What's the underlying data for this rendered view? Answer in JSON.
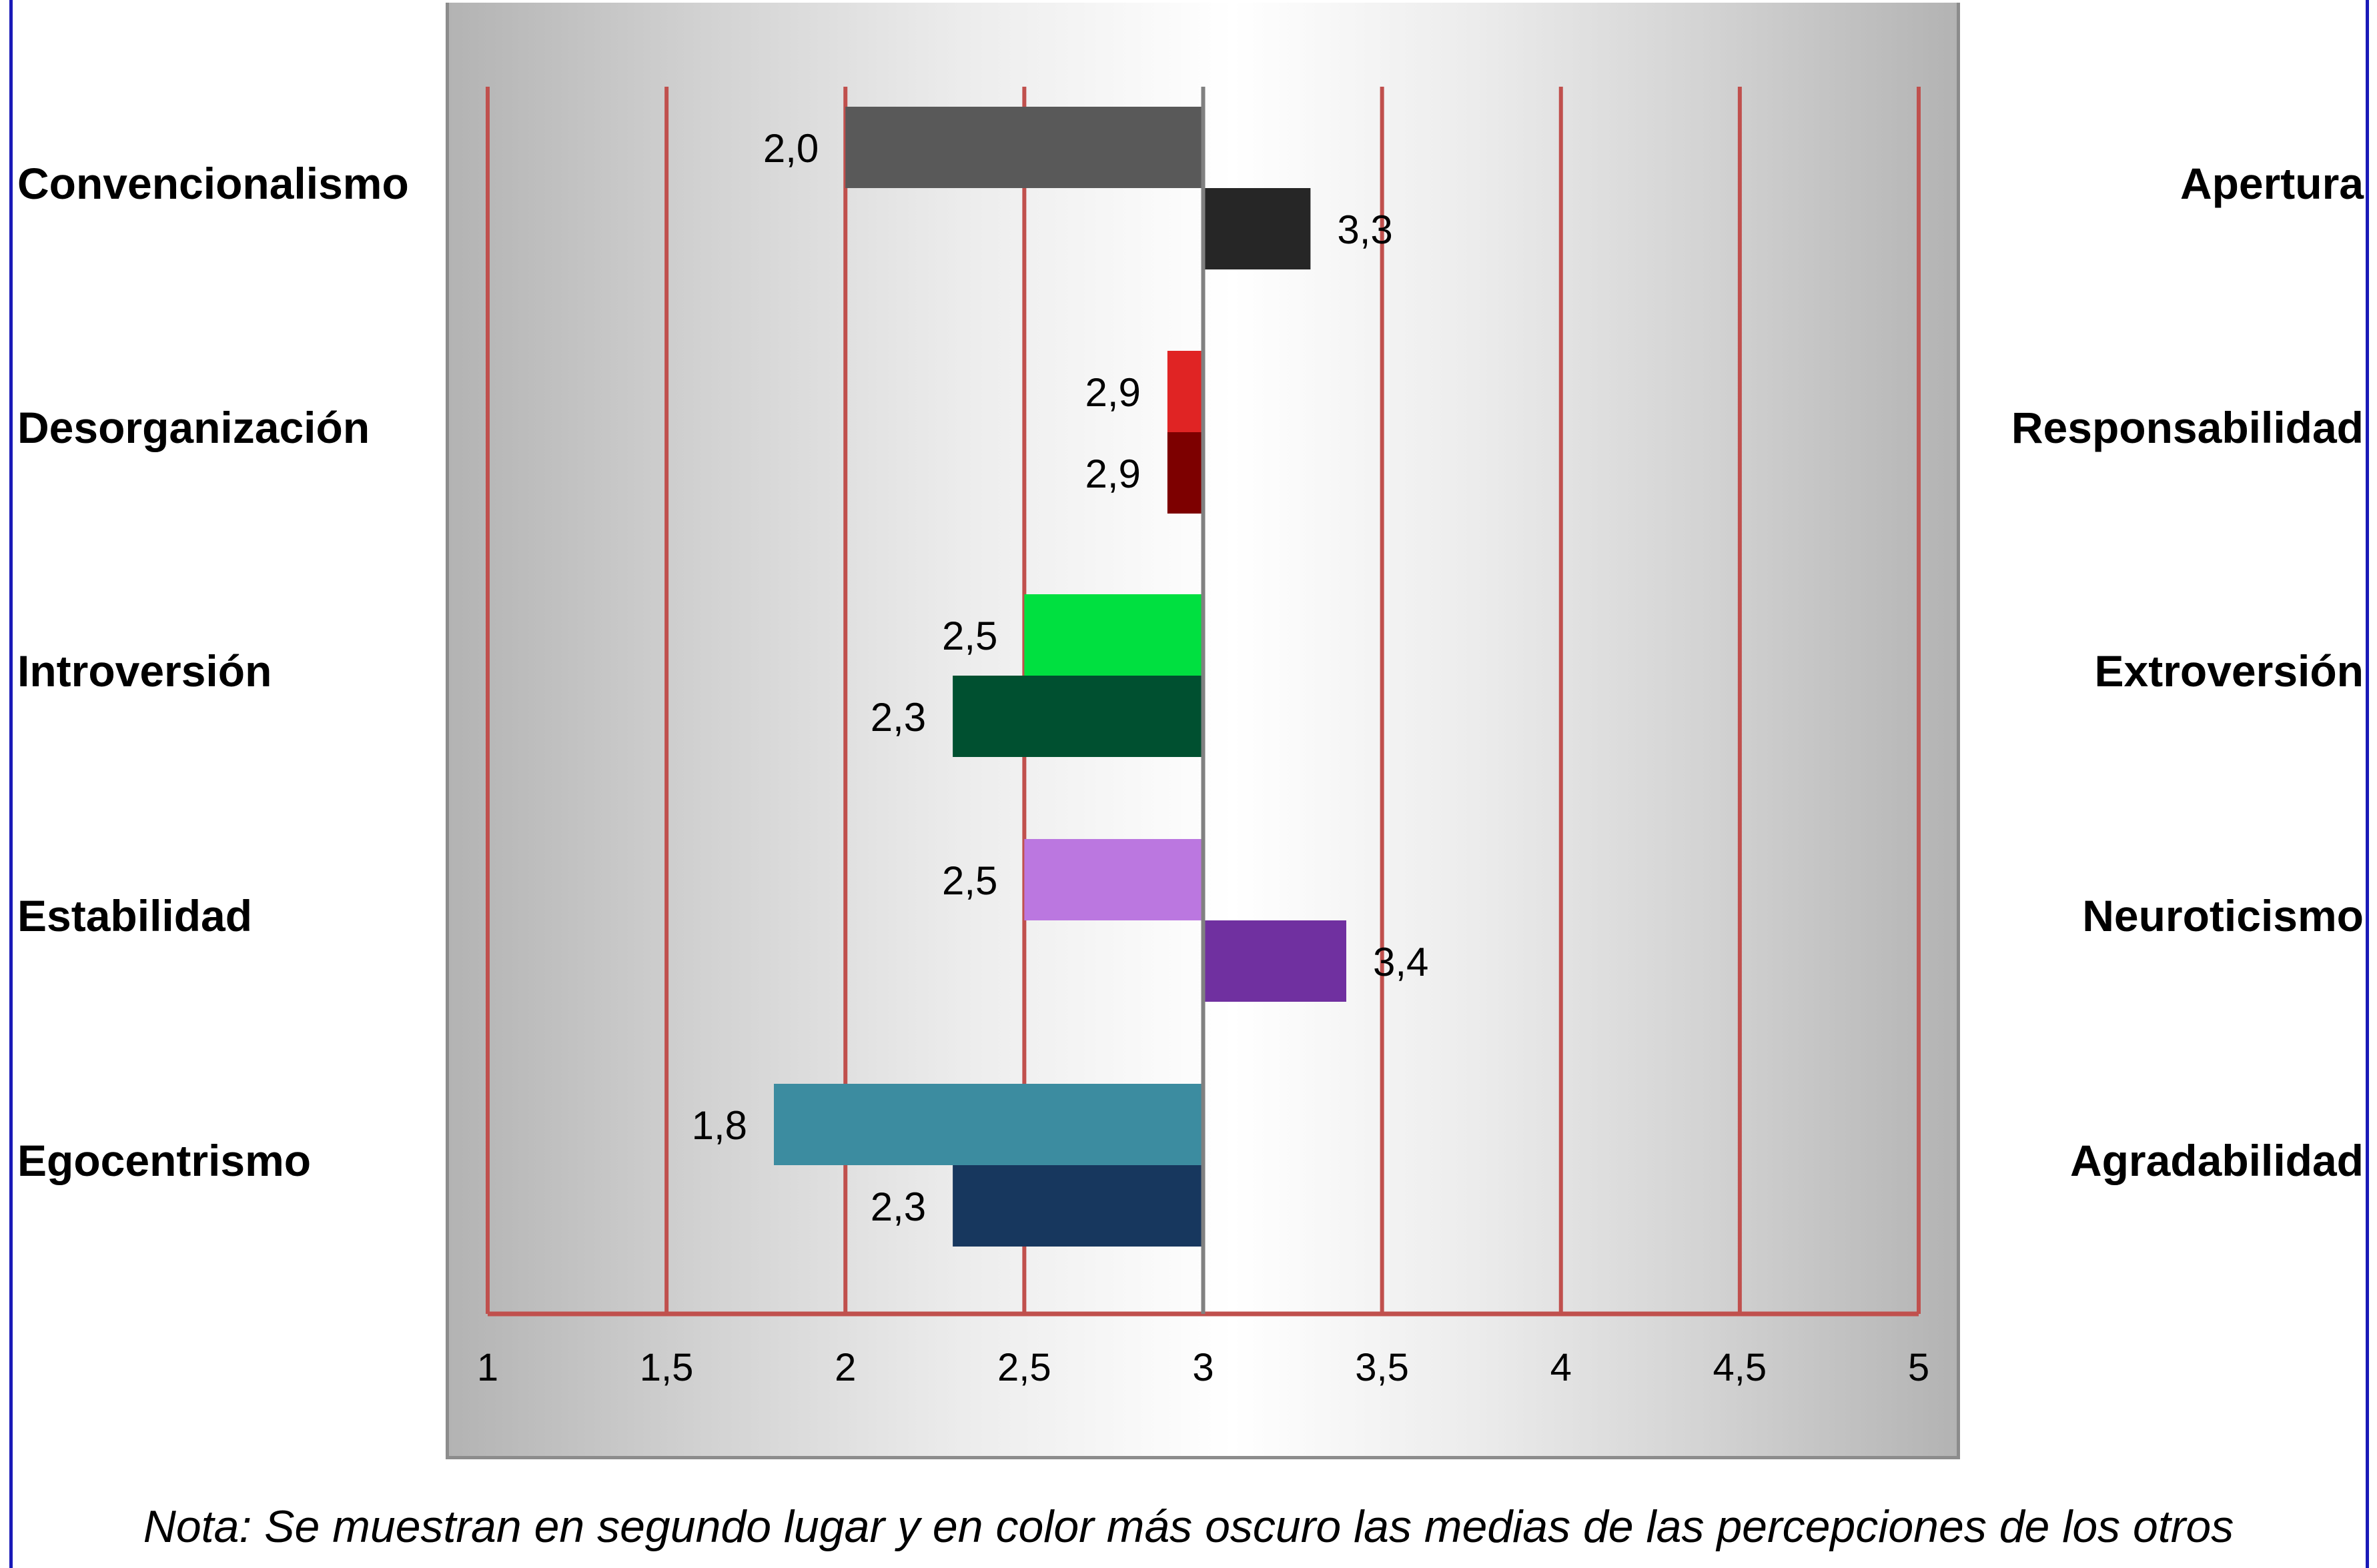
{
  "chart_data": {
    "type": "bar",
    "orientation": "horizontal",
    "baseline": 3,
    "xlim": [
      1,
      5
    ],
    "xticks": [
      "1",
      "1,5",
      "2",
      "2,5",
      "3",
      "3,5",
      "4",
      "4,5",
      "5"
    ],
    "xtick_values": [
      1,
      1.5,
      2,
      2.5,
      3,
      3.5,
      4,
      4.5,
      5
    ],
    "grid": true,
    "categories": [
      {
        "left_label": "Convencionalismo",
        "right_label": "Apertura",
        "bars": [
          {
            "value": 2.0,
            "label": "2,0",
            "color": "#595959"
          },
          {
            "value": 3.3,
            "label": "3,3",
            "color": "#262626"
          }
        ]
      },
      {
        "left_label": "Desorganización",
        "right_label": "Responsabilidad",
        "bars": [
          {
            "value": 2.9,
            "label": "2,9",
            "color": "#e02424"
          },
          {
            "value": 2.9,
            "label": "2,9",
            "color": "#7d0000"
          }
        ]
      },
      {
        "left_label": "Introversión",
        "right_label": "Extroversión",
        "bars": [
          {
            "value": 2.5,
            "label": "2,5",
            "color": "#00e040"
          },
          {
            "value": 2.3,
            "label": "2,3",
            "color": "#005030"
          }
        ]
      },
      {
        "left_label": "Estabilidad",
        "right_label": "Neuroticismo",
        "bars": [
          {
            "value": 2.5,
            "label": "2,5",
            "color": "#bb77e0"
          },
          {
            "value": 3.4,
            "label": "3,4",
            "color": "#7030a0"
          }
        ]
      },
      {
        "left_label": "Egocentrismo",
        "right_label": "Agradabilidad",
        "bars": [
          {
            "value": 1.8,
            "label": "1,8",
            "color": "#3c8ca0"
          },
          {
            "value": 2.3,
            "label": "2,3",
            "color": "#17375e"
          }
        ]
      }
    ],
    "gridline_color": "#c0504d",
    "baseline_color": "#808080"
  },
  "note": "Nota: Se muestran en segundo lugar y en color más oscuro las medias de las percepciones de los otros"
}
